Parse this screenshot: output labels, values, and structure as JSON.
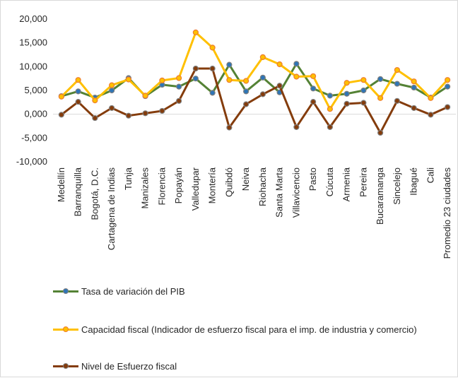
{
  "chart_data": {
    "type": "line",
    "categories": [
      "Medellín",
      "Barranquilla",
      "Bogotá, D.C.",
      "Cartagena de Indias",
      "Tunja",
      "Manizales",
      "Florencia",
      "Popayán",
      "Valledupar",
      "Montería",
      "Quibdó",
      "Neiva",
      "Riohacha",
      "Santa Marta",
      "Villavicencio",
      "Pasto",
      "Cúcuta",
      "Armenia",
      "Pereira",
      "Bucaramanga",
      "Sincelejo",
      "Ibagué",
      "Cali",
      "Promedio 23 ciudades"
    ],
    "ylim": [
      -10000,
      20000
    ],
    "yticks": [
      -10000,
      -5000,
      0,
      5000,
      10000,
      15000,
      20000
    ],
    "ytick_labels": [
      "-10,000",
      "-5,000",
      "0,000",
      "5,000",
      "10,000",
      "15,000",
      "20,000"
    ],
    "grid": false,
    "legend_position": "bottom",
    "series": [
      {
        "name": "Tasa de variación del PIB",
        "color": "#548235",
        "values": [
          3800,
          4800,
          3500,
          5000,
          7600,
          3800,
          6200,
          5800,
          7500,
          4500,
          10400,
          4800,
          7700,
          4600,
          10600,
          5400,
          3900,
          4300,
          5000,
          7400,
          6400,
          5600,
          3500,
          5800
        ]
      },
      {
        "name": "Capacidad fiscal (Indicador de  esfuerzo fiscal para el imp. de industria y comercio)",
        "color": "#ffc000",
        "values": [
          3700,
          7200,
          2900,
          6100,
          7300,
          3900,
          7100,
          7600,
          17200,
          14000,
          7200,
          7000,
          12000,
          10500,
          7900,
          8000,
          1100,
          6600,
          7200,
          3400,
          9300,
          6900,
          3400,
          7200
        ]
      },
      {
        "name": "Nivel de Esfuerzo fiscal",
        "color": "#843c0c",
        "values": [
          -100,
          2600,
          -800,
          1300,
          -300,
          200,
          700,
          2800,
          9600,
          9600,
          -2800,
          2100,
          4200,
          6000,
          -2700,
          2600,
          -2700,
          2200,
          2400,
          -3900,
          2800,
          1300,
          -100,
          1500
        ]
      }
    ]
  }
}
